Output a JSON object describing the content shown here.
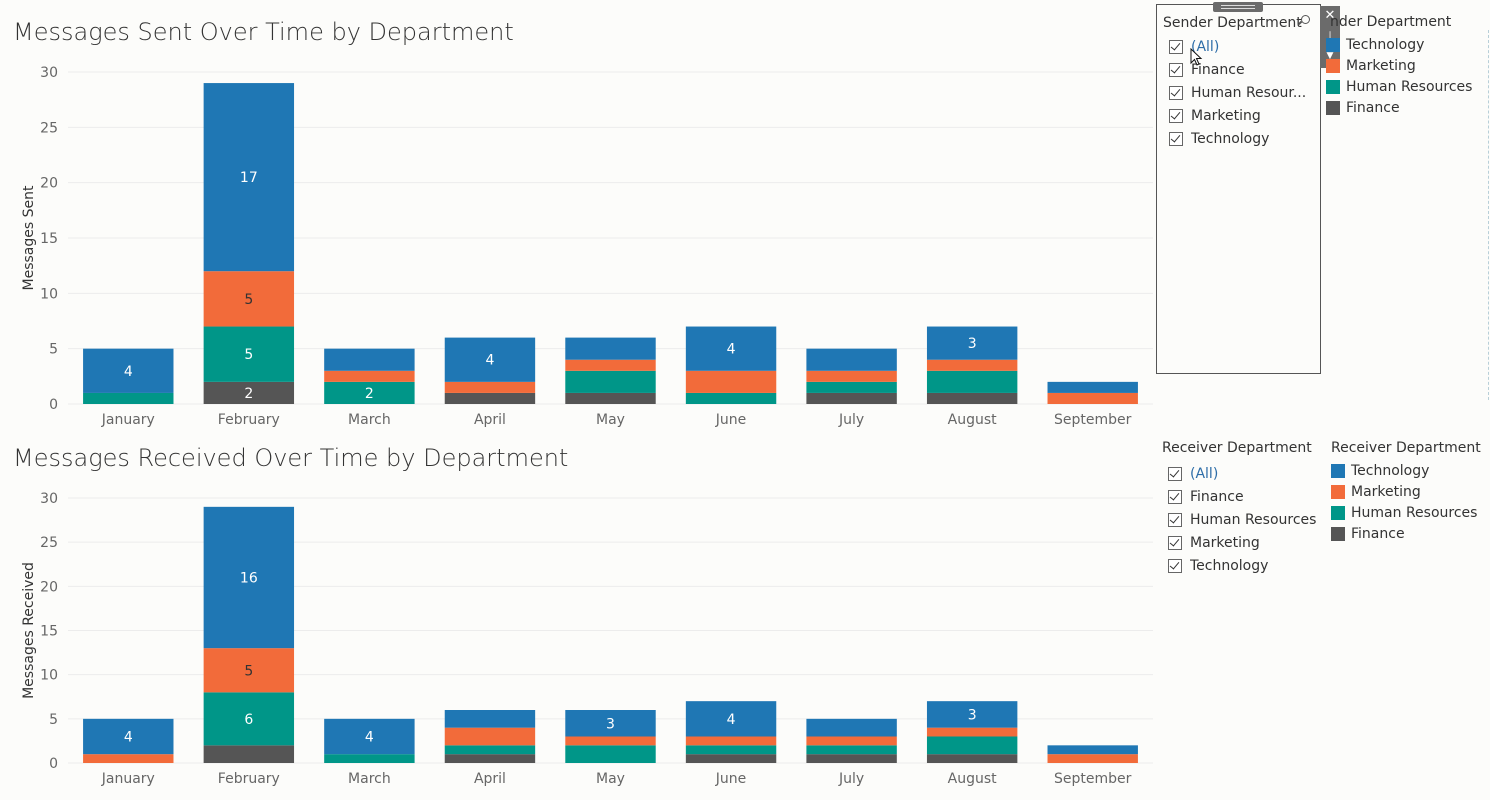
{
  "colors": {
    "technology": "#1f77b4",
    "marketing": "#f26b3a",
    "human_resources": "#009688",
    "finance": "#555555",
    "grid": "#ececec",
    "tick_text": "#666666"
  },
  "chart_data": [
    {
      "type": "bar",
      "stacked": true,
      "title": "Messages Sent Over Time by Department",
      "xlabel": "",
      "ylabel": "Messages Sent",
      "ylim": [
        0,
        30
      ],
      "yticks": [
        0,
        5,
        10,
        15,
        20,
        25,
        30
      ],
      "grid": true,
      "categories": [
        "January",
        "February",
        "March",
        "April",
        "May",
        "June",
        "July",
        "August",
        "September"
      ],
      "series": [
        {
          "name": "Finance",
          "color": "#555555",
          "values": [
            0,
            2,
            0,
            1,
            1,
            0,
            1,
            1,
            0
          ]
        },
        {
          "name": "Human Resources",
          "color": "#009688",
          "values": [
            1,
            5,
            2,
            0,
            2,
            1,
            1,
            2,
            0
          ]
        },
        {
          "name": "Marketing",
          "color": "#f26b3a",
          "values": [
            0,
            5,
            1,
            1,
            1,
            2,
            1,
            1,
            1
          ]
        },
        {
          "name": "Technology",
          "color": "#1f77b4",
          "values": [
            4,
            17,
            2,
            4,
            2,
            4,
            2,
            3,
            1
          ]
        }
      ],
      "data_labels": [
        {
          "category": "January",
          "series": "Technology",
          "text": "4"
        },
        {
          "category": "February",
          "series": "Technology",
          "text": "17"
        },
        {
          "category": "February",
          "series": "Marketing",
          "text": "5"
        },
        {
          "category": "February",
          "series": "Human Resources",
          "text": "5"
        },
        {
          "category": "February",
          "series": "Finance",
          "text": "2"
        },
        {
          "category": "March",
          "series": "Human Resources",
          "text": "2"
        },
        {
          "category": "April",
          "series": "Technology",
          "text": "4"
        },
        {
          "category": "June",
          "series": "Technology",
          "text": "4"
        },
        {
          "category": "August",
          "series": "Technology",
          "text": "3"
        }
      ]
    },
    {
      "type": "bar",
      "stacked": true,
      "title": "Messages Received Over Time by Department",
      "xlabel": "",
      "ylabel": "Messages Received",
      "ylim": [
        0,
        30
      ],
      "yticks": [
        0,
        5,
        10,
        15,
        20,
        25,
        30
      ],
      "grid": true,
      "categories": [
        "January",
        "February",
        "March",
        "April",
        "May",
        "June",
        "July",
        "August",
        "September"
      ],
      "series": [
        {
          "name": "Finance",
          "color": "#555555",
          "values": [
            0,
            2,
            0,
            1,
            0,
            1,
            1,
            1,
            0
          ]
        },
        {
          "name": "Human Resources",
          "color": "#009688",
          "values": [
            0,
            6,
            1,
            1,
            2,
            1,
            1,
            2,
            0
          ]
        },
        {
          "name": "Marketing",
          "color": "#f26b3a",
          "values": [
            1,
            5,
            0,
            2,
            1,
            1,
            1,
            1,
            1
          ]
        },
        {
          "name": "Technology",
          "color": "#1f77b4",
          "values": [
            4,
            16,
            4,
            2,
            3,
            4,
            2,
            3,
            1
          ]
        }
      ],
      "data_labels": [
        {
          "category": "January",
          "series": "Technology",
          "text": "4"
        },
        {
          "category": "February",
          "series": "Technology",
          "text": "16"
        },
        {
          "category": "February",
          "series": "Marketing",
          "text": "5"
        },
        {
          "category": "February",
          "series": "Human Resources",
          "text": "6"
        },
        {
          "category": "March",
          "series": "Technology",
          "text": "4"
        },
        {
          "category": "May",
          "series": "Technology",
          "text": "3"
        },
        {
          "category": "June",
          "series": "Technology",
          "text": "4"
        },
        {
          "category": "August",
          "series": "Technology",
          "text": "3"
        }
      ]
    }
  ],
  "sender_filter": {
    "title": "Sender Department",
    "items": [
      {
        "label": "(All)",
        "checked": true
      },
      {
        "label": "Finance",
        "checked": true
      },
      {
        "label": "Human Resour...",
        "checked": true
      },
      {
        "label": "Marketing",
        "checked": true
      },
      {
        "label": "Technology",
        "checked": true
      }
    ],
    "toolbar": {
      "close_icon": "close-icon",
      "pin_icon": "pin-icon",
      "menu_icon": "dropdown-menu-icon"
    }
  },
  "sender_legend": {
    "title": "nder Department",
    "items": [
      {
        "label": "Technology",
        "color": "#1f77b4"
      },
      {
        "label": "Marketing",
        "color": "#f26b3a"
      },
      {
        "label": "Human Resources",
        "color": "#009688"
      },
      {
        "label": "Finance",
        "color": "#555555"
      }
    ]
  },
  "receiver_filter": {
    "title": "Receiver Department",
    "items": [
      {
        "label": "(All)",
        "checked": true
      },
      {
        "label": "Finance",
        "checked": true
      },
      {
        "label": "Human Resources",
        "checked": true
      },
      {
        "label": "Marketing",
        "checked": true
      },
      {
        "label": "Technology",
        "checked": true
      }
    ]
  },
  "receiver_legend": {
    "title": "Receiver Department",
    "items": [
      {
        "label": "Technology",
        "color": "#1f77b4"
      },
      {
        "label": "Marketing",
        "color": "#f26b3a"
      },
      {
        "label": "Human Resources",
        "color": "#009688"
      },
      {
        "label": "Finance",
        "color": "#555555"
      }
    ]
  }
}
